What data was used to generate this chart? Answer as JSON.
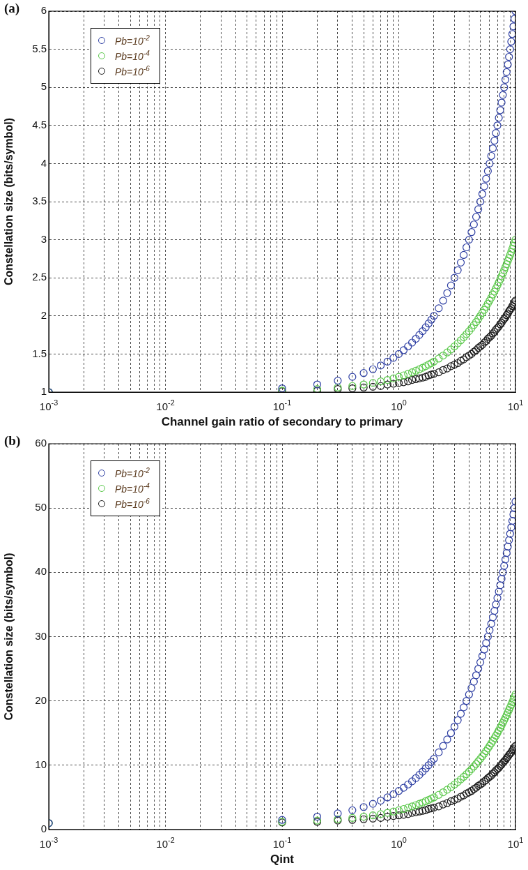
{
  "chart_data": [
    {
      "type": "scatter",
      "title": "(a)",
      "xlabel": "Channel gain ratio of secondary to primary",
      "ylabel": "Constellation size (bits/symbol)",
      "log": "x",
      "grid": true,
      "legend": "top left",
      "marker": "circle",
      "xlim": [
        0.001,
        10
      ],
      "ylim": [
        1,
        6
      ],
      "xticks": [
        {
          "value": 0.001,
          "label": "10$^{-3}$"
        },
        {
          "value": 0.002,
          "label": null
        },
        {
          "value": 0.003,
          "label": null
        },
        {
          "value": 0.004,
          "label": null
        },
        {
          "value": 0.005,
          "label": null
        },
        {
          "value": 0.006,
          "label": null
        },
        {
          "value": 0.007,
          "label": null
        },
        {
          "value": 0.008,
          "label": null
        },
        {
          "value": 0.009,
          "label": null
        },
        {
          "value": 0.01,
          "label": "10$^{-2}$"
        },
        {
          "value": 0.02,
          "label": null
        },
        {
          "value": 0.03,
          "label": null
        },
        {
          "value": 0.04,
          "label": null
        },
        {
          "value": 0.05,
          "label": null
        },
        {
          "value": 0.06,
          "label": null
        },
        {
          "value": 0.07,
          "label": null
        },
        {
          "value": 0.08,
          "label": null
        },
        {
          "value": 0.09,
          "label": null
        },
        {
          "value": 0.1,
          "label": "10$^{-1}$"
        },
        {
          "value": 0.2,
          "label": null
        },
        {
          "value": 0.3,
          "label": null
        },
        {
          "value": 0.4,
          "label": null
        },
        {
          "value": 0.5,
          "label": null
        },
        {
          "value": 0.6,
          "label": null
        },
        {
          "value": 0.7,
          "label": null
        },
        {
          "value": 0.8,
          "label": null
        },
        {
          "value": 0.9,
          "label": null
        },
        {
          "value": 1,
          "label": "10$^{0}$"
        },
        {
          "value": 2,
          "label": null
        },
        {
          "value": 3,
          "label": null
        },
        {
          "value": 4,
          "label": null
        },
        {
          "value": 5,
          "label": null
        },
        {
          "value": 6,
          "label": null
        },
        {
          "value": 7,
          "label": null
        },
        {
          "value": 8,
          "label": null
        },
        {
          "value": 9,
          "label": null
        },
        {
          "value": 10,
          "label": "10$^{1}$"
        }
      ],
      "yticks": [
        1,
        1.5,
        2,
        2.5,
        3,
        3.5,
        4,
        4.5,
        5,
        5.5,
        6
      ],
      "x": [
        0.001,
        0.1,
        0.2,
        0.3,
        0.4,
        0.5,
        0.6,
        0.7,
        0.8,
        0.9,
        1,
        1.1,
        1.2,
        1.3,
        1.4,
        1.5,
        1.6,
        1.7,
        1.8,
        1.9,
        2,
        2.2,
        2.4,
        2.6,
        2.8,
        3,
        3.2,
        3.4,
        3.6,
        3.8,
        4,
        4.2,
        4.4,
        4.6,
        4.8,
        5,
        5.2,
        5.4,
        5.6,
        5.8,
        6,
        6.2,
        6.4,
        6.6,
        6.8,
        7,
        7.2,
        7.4,
        7.6,
        7.8,
        8,
        8.2,
        8.4,
        8.6,
        8.8,
        9,
        9.2,
        9.4,
        9.6,
        9.8,
        10
      ],
      "series": [
        {
          "name": "Pb=10$^{-2}$",
          "color": "#2e3fa3",
          "values": [
            1,
            1.05,
            1.1,
            1.15,
            1.2,
            1.25,
            1.3,
            1.35,
            1.4,
            1.45,
            1.5,
            1.55,
            1.6,
            1.65,
            1.7,
            1.75,
            1.8,
            1.85,
            1.9,
            1.95,
            2,
            2.1,
            2.2,
            2.3,
            2.4,
            2.5,
            2.6,
            2.7,
            2.8,
            2.9,
            3,
            3.1,
            3.2,
            3.3,
            3.4,
            3.5,
            3.6,
            3.7,
            3.8,
            3.9,
            4,
            4.1,
            4.2,
            4.3,
            4.4,
            4.5,
            4.6,
            4.7,
            4.8,
            4.9,
            5,
            5.1,
            5.2,
            5.3,
            5.4,
            5.5,
            5.6,
            5.7,
            5.8,
            5.9,
            6
          ]
        },
        {
          "name": "Pb=10$^{-4}$",
          "color": "#5ac84a",
          "values": [
            1,
            1.02,
            1.04,
            1.06,
            1.08,
            1.1,
            1.12,
            1.14,
            1.16,
            1.18,
            1.2,
            1.22,
            1.24,
            1.26,
            1.28,
            1.3,
            1.32,
            1.34,
            1.36,
            1.38,
            1.4,
            1.44,
            1.48,
            1.52,
            1.56,
            1.6,
            1.64,
            1.68,
            1.72,
            1.76,
            1.8,
            1.84,
            1.88,
            1.92,
            1.96,
            2,
            2.04,
            2.08,
            2.12,
            2.16,
            2.2,
            2.24,
            2.28,
            2.32,
            2.36,
            2.4,
            2.44,
            2.48,
            2.52,
            2.56,
            2.6,
            2.64,
            2.68,
            2.72,
            2.76,
            2.8,
            2.84,
            2.88,
            2.92,
            2.96,
            3
          ]
        },
        {
          "name": "Pb=10$^{-6}$",
          "color": "#1a1a1a",
          "values": [
            1,
            1.01,
            1.02,
            1.04,
            1.05,
            1.06,
            1.07,
            1.08,
            1.1,
            1.11,
            1.12,
            1.13,
            1.14,
            1.16,
            1.17,
            1.18,
            1.19,
            1.2,
            1.22,
            1.23,
            1.24,
            1.26,
            1.29,
            1.31,
            1.34,
            1.36,
            1.38,
            1.41,
            1.43,
            1.46,
            1.48,
            1.5,
            1.53,
            1.55,
            1.58,
            1.6,
            1.62,
            1.65,
            1.67,
            1.7,
            1.72,
            1.74,
            1.77,
            1.79,
            1.82,
            1.84,
            1.86,
            1.89,
            1.91,
            1.94,
            1.96,
            1.98,
            2.01,
            2.03,
            2.06,
            2.08,
            2.1,
            2.13,
            2.15,
            2.18,
            2.2
          ]
        }
      ]
    },
    {
      "type": "scatter",
      "title": "(b)",
      "xlabel": "Qint",
      "ylabel": "Constellation size (bits/symbol)",
      "log": "x",
      "grid": true,
      "legend": "top left",
      "marker": "circle",
      "xlim": [
        0.001,
        10
      ],
      "ylim": [
        0,
        60
      ],
      "xticks": [
        {
          "value": 0.001,
          "label": "10$^{-3}$"
        },
        {
          "value": 0.002,
          "label": null
        },
        {
          "value": 0.003,
          "label": null
        },
        {
          "value": 0.004,
          "label": null
        },
        {
          "value": 0.005,
          "label": null
        },
        {
          "value": 0.006,
          "label": null
        },
        {
          "value": 0.007,
          "label": null
        },
        {
          "value": 0.008,
          "label": null
        },
        {
          "value": 0.009,
          "label": null
        },
        {
          "value": 0.01,
          "label": "10$^{-2}$"
        },
        {
          "value": 0.02,
          "label": null
        },
        {
          "value": 0.03,
          "label": null
        },
        {
          "value": 0.04,
          "label": null
        },
        {
          "value": 0.05,
          "label": null
        },
        {
          "value": 0.06,
          "label": null
        },
        {
          "value": 0.07,
          "label": null
        },
        {
          "value": 0.08,
          "label": null
        },
        {
          "value": 0.09,
          "label": null
        },
        {
          "value": 0.1,
          "label": "10$^{-1}$"
        },
        {
          "value": 0.2,
          "label": null
        },
        {
          "value": 0.3,
          "label": null
        },
        {
          "value": 0.4,
          "label": null
        },
        {
          "value": 0.5,
          "label": null
        },
        {
          "value": 0.6,
          "label": null
        },
        {
          "value": 0.7,
          "label": null
        },
        {
          "value": 0.8,
          "label": null
        },
        {
          "value": 0.9,
          "label": null
        },
        {
          "value": 1,
          "label": "10$^{0}$"
        },
        {
          "value": 2,
          "label": null
        },
        {
          "value": 3,
          "label": null
        },
        {
          "value": 4,
          "label": null
        },
        {
          "value": 5,
          "label": null
        },
        {
          "value": 6,
          "label": null
        },
        {
          "value": 7,
          "label": null
        },
        {
          "value": 8,
          "label": null
        },
        {
          "value": 9,
          "label": null
        },
        {
          "value": 10,
          "label": "10$^{1}$"
        }
      ],
      "yticks": [
        0,
        10,
        20,
        30,
        40,
        50,
        60
      ],
      "x": [
        0.001,
        0.1,
        0.2,
        0.3,
        0.4,
        0.5,
        0.6,
        0.7,
        0.8,
        0.9,
        1,
        1.1,
        1.2,
        1.3,
        1.4,
        1.5,
        1.6,
        1.7,
        1.8,
        1.9,
        2,
        2.2,
        2.4,
        2.6,
        2.8,
        3,
        3.2,
        3.4,
        3.6,
        3.8,
        4,
        4.2,
        4.4,
        4.6,
        4.8,
        5,
        5.2,
        5.4,
        5.6,
        5.8,
        6,
        6.2,
        6.4,
        6.6,
        6.8,
        7,
        7.2,
        7.4,
        7.6,
        7.8,
        8,
        8.2,
        8.4,
        8.6,
        8.8,
        9,
        9.2,
        9.4,
        9.6,
        9.8,
        10
      ],
      "series": [
        {
          "name": "Pb=10$^{-2}$",
          "color": "#2e3fa3",
          "values": [
            1,
            1.5,
            2,
            2.5,
            3,
            3.5,
            4,
            4.5,
            5,
            5.5,
            6,
            6.5,
            7,
            7.5,
            8,
            8.5,
            9,
            9.5,
            10,
            10.5,
            11,
            12,
            13,
            14,
            15,
            16,
            17,
            18,
            19,
            20,
            21,
            22,
            23,
            24,
            25,
            26,
            27,
            28,
            29,
            30,
            31,
            32,
            33,
            34,
            35,
            36,
            37,
            38,
            39,
            40,
            41,
            42,
            43,
            44,
            45,
            46,
            47,
            48,
            49,
            50,
            51
          ]
        },
        {
          "name": "Pb=10$^{-4}$",
          "color": "#5ac84a",
          "values": [
            1,
            1.2,
            1.4,
            1.6,
            1.8,
            2,
            2.2,
            2.4,
            2.6,
            2.8,
            3,
            3.2,
            3.4,
            3.6,
            3.8,
            4,
            4.2,
            4.4,
            4.6,
            4.8,
            5,
            5.4,
            5.8,
            6.2,
            6.6,
            7,
            7.4,
            7.8,
            8.2,
            8.6,
            9,
            9.4,
            9.8,
            10.2,
            10.6,
            11,
            11.4,
            11.8,
            12.2,
            12.6,
            13,
            13.4,
            13.8,
            14.2,
            14.6,
            15,
            15.4,
            15.8,
            16.2,
            16.6,
            17,
            17.4,
            17.8,
            18.2,
            18.6,
            19,
            19.4,
            19.8,
            20.2,
            20.6,
            21
          ]
        },
        {
          "name": "Pb=10$^{-6}$",
          "color": "#1a1a1a",
          "values": [
            1,
            1.1,
            1.2,
            1.4,
            1.5,
            1.6,
            1.7,
            1.8,
            2,
            2.1,
            2.2,
            2.3,
            2.4,
            2.6,
            2.7,
            2.8,
            2.9,
            3,
            3.2,
            3.3,
            3.4,
            3.6,
            3.9,
            4.1,
            4.4,
            4.6,
            4.8,
            5.1,
            5.3,
            5.6,
            5.8,
            6,
            6.3,
            6.5,
            6.8,
            7,
            7.2,
            7.5,
            7.7,
            8,
            8.2,
            8.4,
            8.7,
            8.9,
            9.2,
            9.4,
            9.6,
            9.9,
            10.1,
            10.4,
            10.6,
            10.8,
            11.1,
            11.3,
            11.6,
            11.8,
            12,
            12.3,
            12.5,
            12.8,
            13
          ]
        }
      ]
    }
  ]
}
